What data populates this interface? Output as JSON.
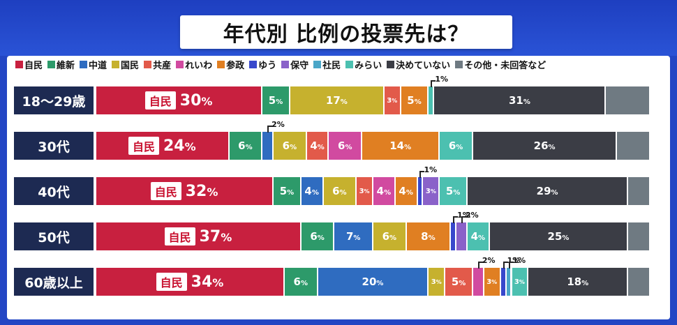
{
  "title": "年代別 比例の投票先は？",
  "colors": {
    "自民": "#c8203f",
    "維新": "#2d9a6a",
    "中道": "#2f6cc0",
    "国民": "#c6b12e",
    "共産": "#e25a4a",
    "れいわ": "#d14aa0",
    "参政": "#e07f22",
    "ゆう": "#3848cc",
    "保守": "#8a62c9",
    "社民": "#4aa6c8",
    "みらい": "#4cc0b0",
    "決めていない": "#3b3d45",
    "その他・未回答など": "#6f7a82"
  },
  "legend": [
    {
      "label": "自民",
      "key": "自民"
    },
    {
      "label": "維新",
      "key": "維新"
    },
    {
      "label": "中道",
      "key": "中道"
    },
    {
      "label": "国民",
      "key": "国民"
    },
    {
      "label": "共産",
      "key": "共産"
    },
    {
      "label": "れいわ",
      "key": "れいわ"
    },
    {
      "label": "参政",
      "key": "参政"
    },
    {
      "label": "ゆう",
      "key": "ゆう"
    },
    {
      "label": "保守",
      "key": "保守"
    },
    {
      "label": "社民",
      "key": "社民"
    },
    {
      "label": "みらい",
      "key": "みらい"
    },
    {
      "label": "決めていない",
      "key": "決めていない"
    },
    {
      "label": "その他・未回答など",
      "key": "その他・未回答など"
    }
  ],
  "ldp_tag": "自民",
  "chart_data": {
    "type": "bar",
    "stacked": true,
    "orientation": "horizontal",
    "title": "年代別 比例の投票先は？",
    "xlim": [
      0,
      100
    ],
    "categories": [
      "18〜29歳",
      "30代",
      "40代",
      "50代",
      "60歳以上"
    ],
    "series": [
      {
        "name": "自民",
        "values": [
          30,
          24,
          32,
          37,
          34
        ]
      },
      {
        "name": "維新",
        "values": [
          5,
          6,
          5,
          6,
          6
        ]
      },
      {
        "name": "中道",
        "values": [
          0,
          2,
          4,
          7,
          20
        ]
      },
      {
        "name": "国民",
        "values": [
          17,
          6,
          6,
          6,
          3
        ]
      },
      {
        "name": "共産",
        "values": [
          3,
          4,
          3,
          0,
          5
        ]
      },
      {
        "name": "れいわ",
        "values": [
          0,
          6,
          4,
          0,
          2
        ]
      },
      {
        "name": "参政",
        "values": [
          5,
          14,
          4,
          8,
          3
        ]
      },
      {
        "name": "ゆう",
        "values": [
          0,
          0,
          1,
          1,
          1
        ]
      },
      {
        "name": "保守",
        "values": [
          0,
          0,
          3,
          2,
          0
        ]
      },
      {
        "name": "社民",
        "values": [
          0,
          0,
          0,
          0,
          1
        ]
      },
      {
        "name": "みらい",
        "values": [
          1,
          6,
          5,
          4,
          3
        ]
      },
      {
        "name": "決めていない",
        "values": [
          31,
          26,
          29,
          25,
          18
        ]
      },
      {
        "name": "その他・未回答など",
        "values": [
          8,
          6,
          4,
          4,
          4
        ]
      }
    ],
    "hidden_labels": [
      "その他・未回答など"
    ]
  }
}
